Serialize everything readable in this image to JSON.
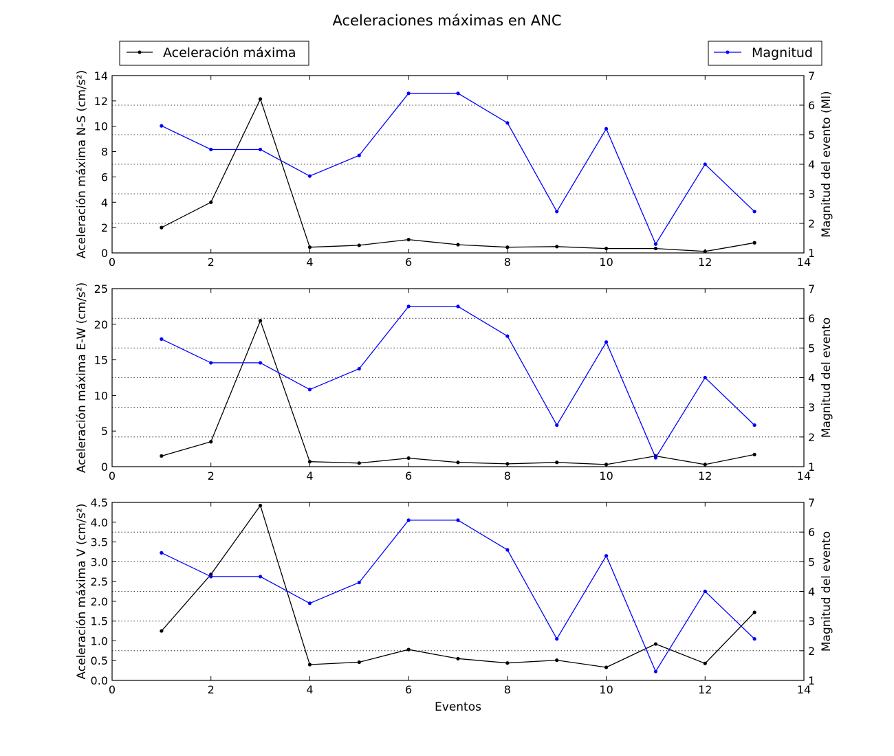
{
  "figure": {
    "title": "Aceleraciones máximas en ANC",
    "xlabel": "Eventos"
  },
  "legend_left": {
    "label": "Aceleración máxima",
    "color": "#000000"
  },
  "legend_right": {
    "label": "Magnitud",
    "color": "#0000ff"
  },
  "chart_data": [
    {
      "type": "line",
      "ylabel": "Aceleración máxima N-S (cm/s²)",
      "y2label": "Magnitud del evento (Ml)",
      "xlim": [
        0,
        14
      ],
      "ylim": [
        0,
        14
      ],
      "y2lim": [
        1,
        7
      ],
      "xticks": [
        "0",
        "2",
        "4",
        "6",
        "8",
        "10",
        "12",
        "14"
      ],
      "yticks": [
        "0",
        "2",
        "4",
        "6",
        "8",
        "10",
        "12",
        "14"
      ],
      "y2ticks": [
        "1",
        "2",
        "3",
        "4",
        "5",
        "6",
        "7"
      ],
      "grid": "right-axis dotted",
      "x": [
        1,
        2,
        3,
        4,
        5,
        6,
        7,
        8,
        9,
        10,
        11,
        12,
        13
      ],
      "series": [
        {
          "name": "Aceleración máxima",
          "axis": "left",
          "color": "#000000",
          "values": [
            2.0,
            4.0,
            12.15,
            0.45,
            0.6,
            1.05,
            0.65,
            0.45,
            0.5,
            0.35,
            0.35,
            0.12,
            0.8
          ]
        },
        {
          "name": "Magnitud",
          "axis": "right",
          "color": "#0000ff",
          "values": [
            5.3,
            4.5,
            4.5,
            3.6,
            4.3,
            6.4,
            6.4,
            5.4,
            2.4,
            5.2,
            1.3,
            4.0,
            2.4
          ]
        }
      ]
    },
    {
      "type": "line",
      "ylabel": "Aceleración máxima E-W (cm/s²)",
      "y2label": "Magnitud del evento",
      "xlim": [
        0,
        14
      ],
      "ylim": [
        0,
        25
      ],
      "y2lim": [
        1,
        7
      ],
      "xticks": [
        "0",
        "2",
        "4",
        "6",
        "8",
        "10",
        "12",
        "14"
      ],
      "yticks": [
        "0",
        "5",
        "10",
        "15",
        "20",
        "25"
      ],
      "y2ticks": [
        "1",
        "2",
        "3",
        "4",
        "5",
        "6",
        "7"
      ],
      "grid": "right-axis dotted",
      "x": [
        1,
        2,
        3,
        4,
        5,
        6,
        7,
        8,
        9,
        10,
        11,
        12,
        13
      ],
      "series": [
        {
          "name": "Aceleración máxima",
          "axis": "left",
          "color": "#000000",
          "values": [
            1.5,
            3.5,
            20.5,
            0.7,
            0.5,
            1.2,
            0.6,
            0.4,
            0.6,
            0.3,
            1.5,
            0.3,
            1.7
          ]
        },
        {
          "name": "Magnitud",
          "axis": "right",
          "color": "#0000ff",
          "values": [
            5.3,
            4.5,
            4.5,
            3.6,
            4.3,
            6.4,
            6.4,
            5.4,
            2.4,
            5.2,
            1.3,
            4.0,
            2.4
          ]
        }
      ]
    },
    {
      "type": "line",
      "ylabel": "Aceleración máxima V (cm/s²)",
      "y2label": "Magnitud del evento",
      "xlabel": "Eventos",
      "xlim": [
        0,
        14
      ],
      "ylim": [
        0,
        4.5
      ],
      "y2lim": [
        1,
        7
      ],
      "xticks": [
        "0",
        "2",
        "4",
        "6",
        "8",
        "10",
        "12",
        "14"
      ],
      "yticks": [
        "0.0",
        "0.5",
        "1.0",
        "1.5",
        "2.0",
        "2.5",
        "3.0",
        "3.5",
        "4.0",
        "4.5"
      ],
      "y2ticks": [
        "1",
        "2",
        "3",
        "4",
        "5",
        "6",
        "7"
      ],
      "grid": "right-axis dotted",
      "x": [
        1,
        2,
        3,
        4,
        5,
        6,
        7,
        8,
        9,
        10,
        11,
        12,
        13
      ],
      "series": [
        {
          "name": "Aceleración máxima",
          "axis": "left",
          "color": "#000000",
          "values": [
            1.25,
            2.68,
            4.42,
            0.4,
            0.46,
            0.78,
            0.55,
            0.44,
            0.51,
            0.33,
            0.92,
            0.43,
            1.72
          ]
        },
        {
          "name": "Magnitud",
          "axis": "right",
          "color": "#0000ff",
          "values": [
            5.3,
            4.5,
            4.5,
            3.6,
            4.3,
            6.4,
            6.4,
            5.4,
            2.4,
            5.2,
            1.3,
            4.0,
            2.4
          ]
        }
      ]
    }
  ]
}
